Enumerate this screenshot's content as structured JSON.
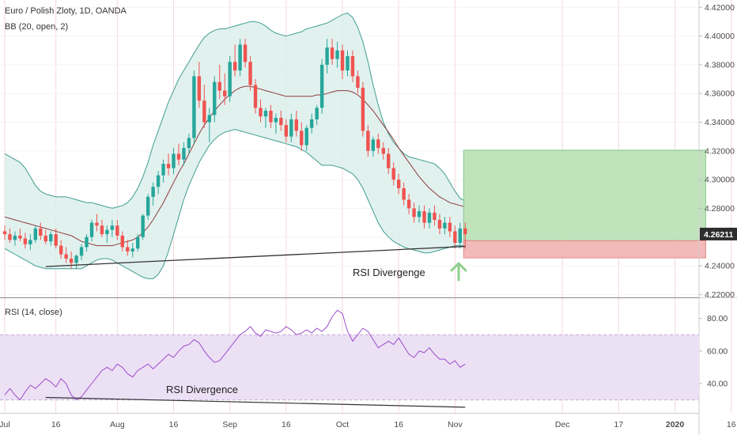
{
  "chart_data": {
    "type": "candlestick",
    "title": "Euro / Polish Zloty, 1D, OANDA",
    "indicator_label": "BB (20, open, 2)",
    "current_price_label": "4.26211",
    "price_ticks": [
      "4.42000",
      "4.40000",
      "4.38000",
      "4.36000",
      "4.34000",
      "4.32000",
      "4.30000",
      "4.28000",
      "4.26000",
      "4.24000",
      "4.22000"
    ],
    "price_tick_values": [
      4.42,
      4.4,
      4.38,
      4.36,
      4.34,
      4.32,
      4.3,
      4.28,
      4.26,
      4.24,
      4.22
    ],
    "ylim": [
      4.218,
      4.424
    ],
    "date_ticks": [
      "Jul",
      "16",
      "Aug",
      "16",
      "Sep",
      "16",
      "Oct",
      "16",
      "Nov",
      "Dec",
      "17",
      "2020",
      "16"
    ],
    "date_tick_index": [
      0,
      10,
      22,
      33,
      44,
      55,
      66,
      77,
      88,
      109,
      120,
      131,
      142
    ],
    "candles": [
      [
        4.264,
        4.268,
        4.258,
        4.262
      ],
      [
        4.262,
        4.266,
        4.256,
        4.258
      ],
      [
        4.258,
        4.264,
        4.254,
        4.261
      ],
      [
        4.261,
        4.266,
        4.257,
        4.259
      ],
      [
        4.259,
        4.263,
        4.252,
        4.255
      ],
      [
        4.255,
        4.262,
        4.251,
        4.258
      ],
      [
        4.258,
        4.268,
        4.256,
        4.266
      ],
      [
        4.266,
        4.27,
        4.258,
        4.261
      ],
      [
        4.261,
        4.265,
        4.255,
        4.257
      ],
      [
        4.257,
        4.264,
        4.254,
        4.262
      ],
      [
        4.262,
        4.266,
        4.252,
        4.254
      ],
      [
        4.254,
        4.258,
        4.245,
        4.248
      ],
      [
        4.248,
        4.253,
        4.242,
        4.245
      ],
      [
        4.245,
        4.25,
        4.238,
        4.242
      ],
      [
        4.242,
        4.248,
        4.238,
        4.247
      ],
      [
        4.247,
        4.255,
        4.244,
        4.253
      ],
      [
        4.253,
        4.262,
        4.25,
        4.26
      ],
      [
        4.26,
        4.272,
        4.257,
        4.27
      ],
      [
        4.27,
        4.276,
        4.264,
        4.268
      ],
      [
        4.268,
        4.272,
        4.26,
        4.262
      ],
      [
        4.262,
        4.268,
        4.256,
        4.265
      ],
      [
        4.265,
        4.272,
        4.26,
        4.268
      ],
      [
        4.268,
        4.272,
        4.258,
        4.261
      ],
      [
        4.261,
        4.264,
        4.25,
        4.253
      ],
      [
        4.253,
        4.258,
        4.247,
        4.25
      ],
      [
        4.25,
        4.256,
        4.246,
        4.252
      ],
      [
        4.252,
        4.262,
        4.25,
        4.26
      ],
      [
        4.26,
        4.276,
        4.258,
        4.275
      ],
      [
        4.275,
        4.29,
        4.272,
        4.288
      ],
      [
        4.288,
        4.298,
        4.282,
        4.295
      ],
      [
        4.295,
        4.306,
        4.29,
        4.303
      ],
      [
        4.303,
        4.314,
        4.298,
        4.311
      ],
      [
        4.311,
        4.318,
        4.303,
        4.308
      ],
      [
        4.308,
        4.322,
        4.304,
        4.318
      ],
      [
        4.318,
        4.325,
        4.31,
        4.314
      ],
      [
        4.314,
        4.326,
        4.31,
        4.322
      ],
      [
        4.322,
        4.332,
        4.318,
        4.329
      ],
      [
        4.329,
        4.376,
        4.325,
        4.372
      ],
      [
        4.372,
        4.382,
        4.35,
        4.355
      ],
      [
        4.355,
        4.366,
        4.336,
        4.34
      ],
      [
        4.34,
        4.35,
        4.326,
        4.345
      ],
      [
        4.345,
        4.372,
        4.34,
        4.368
      ],
      [
        4.368,
        4.38,
        4.356,
        4.362
      ],
      [
        4.362,
        4.374,
        4.352,
        4.358
      ],
      [
        4.358,
        4.386,
        4.354,
        4.382
      ],
      [
        4.382,
        4.394,
        4.372,
        4.376
      ],
      [
        4.376,
        4.398,
        4.372,
        4.394
      ],
      [
        4.394,
        4.398,
        4.378,
        4.382
      ],
      [
        4.382,
        4.386,
        4.362,
        4.366
      ],
      [
        4.366,
        4.37,
        4.346,
        4.35
      ],
      [
        4.35,
        4.356,
        4.34,
        4.344
      ],
      [
        4.344,
        4.35,
        4.336,
        4.348
      ],
      [
        4.348,
        4.352,
        4.336,
        4.34
      ],
      [
        4.34,
        4.346,
        4.332,
        4.343
      ],
      [
        4.343,
        4.348,
        4.334,
        4.338
      ],
      [
        4.338,
        4.342,
        4.326,
        4.33
      ],
      [
        4.33,
        4.346,
        4.326,
        4.342
      ],
      [
        4.342,
        4.348,
        4.33,
        4.334
      ],
      [
        4.334,
        4.34,
        4.32,
        4.324
      ],
      [
        4.324,
        4.338,
        4.32,
        4.336
      ],
      [
        4.336,
        4.346,
        4.332,
        4.342
      ],
      [
        4.342,
        4.352,
        4.338,
        4.35
      ],
      [
        4.35,
        4.384,
        4.346,
        4.38
      ],
      [
        4.38,
        4.398,
        4.374,
        4.392
      ],
      [
        4.392,
        4.398,
        4.38,
        4.384
      ],
      [
        4.384,
        4.396,
        4.378,
        4.39
      ],
      [
        4.39,
        4.394,
        4.37,
        4.376
      ],
      [
        4.376,
        4.39,
        4.372,
        4.386
      ],
      [
        4.386,
        4.39,
        4.368,
        4.372
      ],
      [
        4.372,
        4.376,
        4.36,
        4.364
      ],
      [
        4.364,
        4.368,
        4.33,
        4.334
      ],
      [
        4.334,
        4.338,
        4.316,
        4.32
      ],
      [
        4.32,
        4.33,
        4.316,
        4.328
      ],
      [
        4.328,
        4.332,
        4.318,
        4.322
      ],
      [
        4.322,
        4.326,
        4.314,
        4.318
      ],
      [
        4.318,
        4.322,
        4.304,
        4.308
      ],
      [
        4.308,
        4.312,
        4.296,
        4.3
      ],
      [
        4.3,
        4.304,
        4.29,
        4.294
      ],
      [
        4.294,
        4.298,
        4.282,
        4.286
      ],
      [
        4.286,
        4.29,
        4.276,
        4.28
      ],
      [
        4.28,
        4.284,
        4.27,
        4.274
      ],
      [
        4.274,
        4.282,
        4.27,
        4.278
      ],
      [
        4.278,
        4.282,
        4.266,
        4.27
      ],
      [
        4.27,
        4.28,
        4.266,
        4.277
      ],
      [
        4.277,
        4.282,
        4.268,
        4.272
      ],
      [
        4.272,
        4.276,
        4.262,
        4.266
      ],
      [
        4.266,
        4.274,
        4.262,
        4.27
      ],
      [
        4.27,
        4.274,
        4.26,
        4.264
      ],
      [
        4.264,
        4.268,
        4.252,
        4.256
      ],
      [
        4.256,
        4.27,
        4.252,
        4.266
      ],
      [
        4.266,
        4.27,
        4.252,
        4.262
      ]
    ],
    "bollinger": {
      "upper": [
        4.318,
        4.316,
        4.314,
        4.312,
        4.308,
        4.302,
        4.296,
        4.292,
        4.29,
        4.289,
        4.288,
        4.288,
        4.288,
        4.287,
        4.286,
        4.285,
        4.284,
        4.284,
        4.283,
        4.282,
        4.281,
        4.28,
        4.281,
        4.282,
        4.284,
        4.288,
        4.294,
        4.302,
        4.312,
        4.324,
        4.334,
        4.344,
        4.354,
        4.362,
        4.37,
        4.376,
        4.382,
        4.388,
        4.394,
        4.399,
        4.402,
        4.404,
        4.405,
        4.405,
        4.406,
        4.407,
        4.408,
        4.409,
        4.41,
        4.41,
        4.409,
        4.407,
        4.404,
        4.402,
        4.401,
        4.4,
        4.401,
        4.402,
        4.403,
        4.405,
        4.406,
        4.407,
        4.408,
        4.409,
        4.411,
        4.413,
        4.415,
        4.416,
        4.413,
        4.406,
        4.396,
        4.382,
        4.366,
        4.352,
        4.34,
        4.332,
        4.326,
        4.322,
        4.318,
        4.316,
        4.315,
        4.314,
        4.313,
        4.312,
        4.311,
        4.308,
        4.304,
        4.298,
        4.292,
        4.287,
        4.285
      ],
      "middle": [
        4.274,
        4.273,
        4.272,
        4.271,
        4.27,
        4.269,
        4.268,
        4.267,
        4.266,
        4.265,
        4.264,
        4.263,
        4.262,
        4.261,
        4.259,
        4.257,
        4.256,
        4.255,
        4.254,
        4.254,
        4.254,
        4.254,
        4.255,
        4.256,
        4.257,
        4.258,
        4.26,
        4.263,
        4.267,
        4.272,
        4.278,
        4.284,
        4.291,
        4.298,
        4.305,
        4.311,
        4.318,
        4.325,
        4.332,
        4.338,
        4.343,
        4.348,
        4.352,
        4.356,
        4.359,
        4.362,
        4.364,
        4.365,
        4.365,
        4.364,
        4.363,
        4.362,
        4.361,
        4.36,
        4.359,
        4.358,
        4.358,
        4.358,
        4.358,
        4.358,
        4.358,
        4.359,
        4.359,
        4.36,
        4.361,
        4.362,
        4.362,
        4.362,
        4.361,
        4.359,
        4.356,
        4.352,
        4.348,
        4.343,
        4.338,
        4.333,
        4.328,
        4.322,
        4.317,
        4.312,
        4.307,
        4.302,
        4.298,
        4.294,
        4.291,
        4.288,
        4.286,
        4.284,
        4.283,
        4.282,
        4.281
      ],
      "lower": [
        4.252,
        4.25,
        4.248,
        4.246,
        4.244,
        4.242,
        4.24,
        4.239,
        4.238,
        4.238,
        4.238,
        4.238,
        4.238,
        4.238,
        4.238,
        4.238,
        4.24,
        4.242,
        4.244,
        4.245,
        4.245,
        4.244,
        4.242,
        4.24,
        4.238,
        4.236,
        4.234,
        4.232,
        4.231,
        4.231,
        4.234,
        4.24,
        4.25,
        4.262,
        4.274,
        4.286,
        4.296,
        4.304,
        4.312,
        4.318,
        4.324,
        4.328,
        4.331,
        4.333,
        4.334,
        4.335,
        4.334,
        4.333,
        4.332,
        4.331,
        4.33,
        4.329,
        4.328,
        4.327,
        4.326,
        4.325,
        4.324,
        4.323,
        4.321,
        4.319,
        4.316,
        4.313,
        4.31,
        4.31,
        4.31,
        4.309,
        4.308,
        4.306,
        4.304,
        4.3,
        4.294,
        4.286,
        4.278,
        4.27,
        4.264,
        4.26,
        4.257,
        4.255,
        4.253,
        4.252,
        4.251,
        4.25,
        4.249,
        4.249,
        4.25,
        4.251,
        4.252,
        4.253,
        4.254,
        4.254,
        4.254
      ]
    },
    "trade_box": {
      "entry": 4.2575,
      "target": 4.3205,
      "stop": 4.2455,
      "start_index": 90,
      "end_index": 137
    },
    "price_trendline": [
      [
        8,
        4.2395
      ],
      [
        90,
        4.2535
      ]
    ],
    "price_annotation": "RSI Divergenge",
    "rsi": {
      "label": "RSI (14, close)",
      "ticks": [
        "80.00",
        "60.00",
        "40.00"
      ],
      "tick_values": [
        80,
        60,
        40
      ],
      "ylim": [
        23,
        90
      ],
      "band": [
        30,
        70
      ],
      "values": [
        33,
        37,
        33,
        30,
        35,
        39,
        37,
        40,
        43,
        41,
        38,
        43,
        40,
        33,
        30,
        32,
        36,
        40,
        44,
        48,
        50,
        48,
        52,
        50,
        46,
        44,
        48,
        50,
        52,
        49,
        52,
        55,
        58,
        56,
        60,
        63,
        64,
        67,
        65,
        60,
        56,
        53,
        54,
        58,
        62,
        66,
        70,
        72,
        75,
        71,
        69,
        73,
        72,
        71,
        72,
        75,
        73,
        70,
        71,
        73,
        71,
        74,
        72,
        75,
        81,
        85,
        83,
        72,
        66,
        70,
        74,
        72,
        67,
        62,
        64,
        66,
        64,
        68,
        63,
        58,
        56,
        60,
        59,
        62,
        58,
        55,
        55,
        52,
        54,
        50,
        52
      ],
      "trendline": [
        [
          8,
          31.5
        ],
        [
          90,
          25.5
        ]
      ],
      "annotation": "RSI Divergence"
    },
    "colors": {
      "up": "#26a69a",
      "down": "#ef5350",
      "band_line": "#3f9e8f",
      "band_fill": "#dcefeb",
      "basis": "#8e3b3b",
      "target_fill": "#b9e0b5",
      "target_stroke": "#87c98a",
      "stop_fill": "#f2b6b6",
      "stop_stroke": "#e08989",
      "rsi_line": "#9c4dcc",
      "rsi_band": "#ece0f5",
      "price_tag": "#2d2d2d",
      "arrow": "#8ecf8b"
    }
  }
}
